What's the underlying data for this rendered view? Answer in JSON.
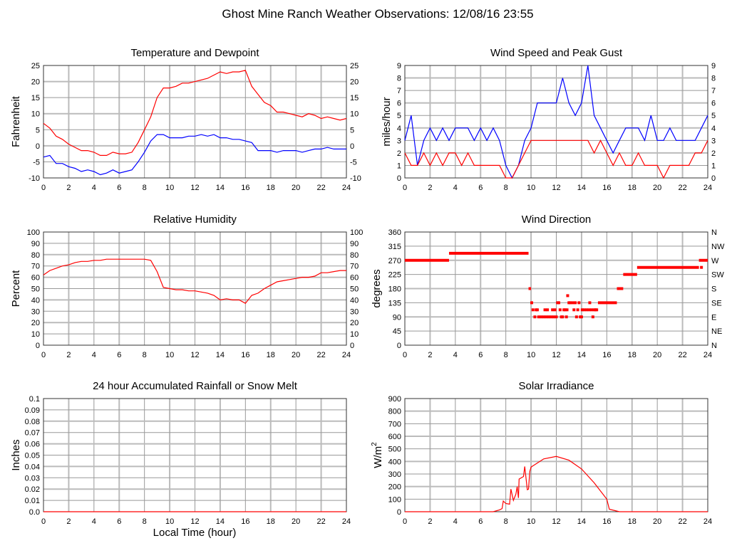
{
  "title": "Ghost Mine Ranch Weather Observations: 12/08/16 23:55",
  "x_axis_label": "Local Time (hour)",
  "chart_data": [
    {
      "id": "temp",
      "type": "line",
      "title": "Temperature and Dewpoint",
      "ylabel": "Fahrenheit",
      "xlim": [
        0,
        24
      ],
      "ylim": [
        -10,
        25
      ],
      "xticks": [
        0,
        2,
        4,
        6,
        8,
        10,
        12,
        14,
        16,
        18,
        20,
        22,
        24
      ],
      "yticks": [
        -10,
        -5,
        0,
        5,
        10,
        15,
        20,
        25
      ],
      "right_ticks": [
        "-10",
        "-5",
        "0",
        "5",
        "10",
        "15",
        "20",
        "25"
      ],
      "grid": true,
      "x": [
        0,
        0.5,
        1,
        1.5,
        2,
        2.5,
        3,
        3.5,
        4,
        4.5,
        5,
        5.5,
        6,
        6.5,
        7,
        7.5,
        8,
        8.5,
        9,
        9.5,
        10,
        10.5,
        11,
        11.5,
        12,
        12.5,
        13,
        13.5,
        14,
        14.5,
        15,
        15.5,
        16,
        16.5,
        17,
        17.5,
        18,
        18.5,
        19,
        19.5,
        20,
        20.5,
        21,
        21.5,
        22,
        22.5,
        23,
        23.5,
        24
      ],
      "series": [
        {
          "name": "Temperature",
          "color": "#ff0000",
          "values": [
            7,
            5.5,
            3,
            2,
            0.5,
            -0.5,
            -1.5,
            -1.5,
            -2,
            -3,
            -3,
            -2,
            -2.5,
            -2.5,
            -2,
            1,
            5,
            9,
            15,
            18,
            18,
            18.5,
            19.5,
            19.5,
            20,
            20.5,
            21,
            22,
            23,
            22.5,
            23,
            23,
            23.5,
            18.5,
            16,
            13.5,
            12.5,
            10.5,
            10.5,
            10,
            9.5,
            9,
            10,
            9.5,
            8.5,
            9,
            8.5,
            8,
            8.5
          ]
        },
        {
          "name": "Dewpoint",
          "color": "#0000ff",
          "values": [
            -3.5,
            -3,
            -5.5,
            -5.5,
            -6.5,
            -7,
            -8,
            -7.5,
            -8,
            -9,
            -8.5,
            -7.5,
            -8.5,
            -8,
            -7.5,
            -5,
            -2,
            1.5,
            3.5,
            3.5,
            2.5,
            2.5,
            2.5,
            3,
            3,
            3.5,
            3,
            3.5,
            2.5,
            2.5,
            2,
            2,
            1.5,
            1,
            -1.5,
            -1.5,
            -1.5,
            -2,
            -1.5,
            -1.5,
            -1.5,
            -2,
            -1.5,
            -1,
            -1,
            -0.5,
            -1,
            -1,
            -1
          ]
        }
      ]
    },
    {
      "id": "wind",
      "type": "line",
      "title": "Wind Speed and Peak Gust",
      "ylabel": "miles/hour",
      "xlim": [
        0,
        24
      ],
      "ylim": [
        0,
        9
      ],
      "xticks": [
        0,
        2,
        4,
        6,
        8,
        10,
        12,
        14,
        16,
        18,
        20,
        22,
        24
      ],
      "yticks": [
        0,
        1,
        2,
        3,
        4,
        5,
        6,
        7,
        8,
        9
      ],
      "right_ticks": [
        "0",
        "1",
        "2",
        "3",
        "4",
        "5",
        "6",
        "7",
        "8",
        "9"
      ],
      "grid": true,
      "x": [
        0,
        0.5,
        1,
        1.5,
        2,
        2.5,
        3,
        3.5,
        4,
        4.5,
        5,
        5.5,
        6,
        6.5,
        7,
        7.5,
        8,
        8.5,
        9,
        9.5,
        10,
        10.5,
        11,
        11.5,
        12,
        12.5,
        13,
        13.5,
        14,
        14.5,
        15,
        15.5,
        16,
        16.5,
        17,
        17.5,
        18,
        18.5,
        19,
        19.5,
        20,
        20.5,
        21,
        21.5,
        22,
        22.5,
        23,
        23.5,
        24
      ],
      "series": [
        {
          "name": "Peak Gust",
          "color": "#0000ff",
          "values": [
            3,
            5,
            1,
            3,
            4,
            3,
            4,
            3,
            4,
            4,
            4,
            3,
            4,
            3,
            4,
            3,
            1,
            0,
            1,
            3,
            4,
            6,
            6,
            6,
            6,
            8,
            6,
            5,
            6,
            9,
            5,
            4,
            3,
            2,
            3,
            4,
            4,
            4,
            3,
            5,
            3,
            3,
            4,
            3,
            3,
            3,
            3,
            4,
            5
          ]
        },
        {
          "name": "Wind Speed",
          "color": "#ff0000",
          "values": [
            2,
            1,
            1,
            2,
            1,
            2,
            1,
            2,
            2,
            1,
            2,
            1,
            1,
            1,
            1,
            1,
            0,
            0,
            1,
            2,
            3,
            3,
            3,
            3,
            3,
            3,
            3,
            3,
            3,
            3,
            2,
            3,
            2,
            1,
            2,
            1,
            1,
            2,
            1,
            1,
            1,
            0,
            1,
            1,
            1,
            1,
            2,
            2,
            3
          ]
        }
      ]
    },
    {
      "id": "rh",
      "type": "line",
      "title": "Relative Humidity",
      "ylabel": "Percent",
      "xlim": [
        0,
        24
      ],
      "ylim": [
        0,
        100
      ],
      "xticks": [
        0,
        2,
        4,
        6,
        8,
        10,
        12,
        14,
        16,
        18,
        20,
        22,
        24
      ],
      "yticks": [
        0,
        10,
        20,
        30,
        40,
        50,
        60,
        70,
        80,
        90,
        100
      ],
      "right_ticks": [
        "0",
        "10",
        "20",
        "30",
        "40",
        "50",
        "60",
        "70",
        "80",
        "90",
        "100"
      ],
      "grid": true,
      "x": [
        0,
        0.5,
        1,
        1.5,
        2,
        2.5,
        3,
        3.5,
        4,
        4.5,
        5,
        5.5,
        6,
        6.5,
        7,
        7.5,
        8,
        8.5,
        9,
        9.5,
        10,
        10.5,
        11,
        11.5,
        12,
        12.5,
        13,
        13.5,
        14,
        14.5,
        15,
        15.5,
        16,
        16.5,
        17,
        17.5,
        18,
        18.5,
        19,
        19.5,
        20,
        20.5,
        21,
        21.5,
        22,
        22.5,
        23,
        23.5,
        24
      ],
      "series": [
        {
          "name": "Relative Humidity",
          "color": "#ff0000",
          "values": [
            62,
            66,
            68,
            70,
            71,
            73,
            74,
            74,
            75,
            75,
            76,
            76,
            76,
            76,
            76,
            76,
            76,
            75,
            65,
            51,
            50,
            49,
            49,
            48,
            48,
            47,
            46,
            44,
            40,
            41,
            40,
            40,
            37,
            44,
            46,
            50,
            53,
            56,
            57,
            58,
            59,
            60,
            60,
            61,
            64,
            64,
            65,
            66,
            66
          ]
        }
      ]
    },
    {
      "id": "dir",
      "type": "scatter",
      "title": "Wind Direction",
      "ylabel": "degrees",
      "xlim": [
        0,
        24
      ],
      "ylim": [
        0,
        360
      ],
      "xticks": [
        0,
        2,
        4,
        6,
        8,
        10,
        12,
        14,
        16,
        18,
        20,
        22,
        24
      ],
      "yticks": [
        0,
        45,
        90,
        135,
        180,
        225,
        270,
        315,
        360
      ],
      "right_ticks": [
        "N",
        "NE",
        "E",
        "SE",
        "S",
        "SW",
        "W",
        "NW",
        "N"
      ],
      "grid": true,
      "color": "#ff0000",
      "runs": [
        [
          0,
          3.5,
          270
        ],
        [
          3.5,
          9.8,
          292.5
        ],
        [
          9.8,
          10.0,
          180
        ],
        [
          15.3,
          16.8,
          135
        ],
        [
          16.8,
          17.3,
          180
        ],
        [
          17.3,
          18.4,
          225
        ],
        [
          18.4,
          23.3,
          247.5
        ],
        [
          23.3,
          24,
          270
        ]
      ],
      "points": [
        [
          10.05,
          135
        ],
        [
          10.15,
          112.5
        ],
        [
          10.3,
          90
        ],
        [
          10.4,
          112.5
        ],
        [
          10.5,
          112.5
        ],
        [
          10.6,
          90
        ],
        [
          10.8,
          90
        ],
        [
          11.0,
          90
        ],
        [
          11.1,
          112.5
        ],
        [
          11.2,
          90
        ],
        [
          11.3,
          112.5
        ],
        [
          11.4,
          90
        ],
        [
          11.6,
          90
        ],
        [
          11.7,
          112.5
        ],
        [
          11.8,
          90
        ],
        [
          11.9,
          112.5
        ],
        [
          12.0,
          90
        ],
        [
          12.1,
          135
        ],
        [
          12.2,
          135
        ],
        [
          12.3,
          112.5
        ],
        [
          12.4,
          90
        ],
        [
          12.5,
          90
        ],
        [
          12.6,
          112.5
        ],
        [
          12.7,
          112.5
        ],
        [
          12.8,
          90
        ],
        [
          12.85,
          112.5
        ],
        [
          12.9,
          157.5
        ],
        [
          13.0,
          135
        ],
        [
          13.1,
          135
        ],
        [
          13.3,
          135
        ],
        [
          13.4,
          112.5
        ],
        [
          13.5,
          135
        ],
        [
          13.6,
          90
        ],
        [
          13.7,
          112.5
        ],
        [
          13.8,
          135
        ],
        [
          13.9,
          90
        ],
        [
          14.0,
          90
        ],
        [
          14.05,
          112.5
        ],
        [
          14.2,
          112.5
        ],
        [
          14.4,
          112.5
        ],
        [
          14.6,
          112.5
        ],
        [
          14.65,
          135
        ],
        [
          14.8,
          112.5
        ],
        [
          14.9,
          90
        ],
        [
          15.0,
          112.5
        ],
        [
          15.1,
          112.5
        ],
        [
          15.2,
          112.5
        ],
        [
          23.5,
          247.5
        ]
      ]
    },
    {
      "id": "rain",
      "type": "line",
      "title": "24 hour Accumulated Rainfall or Snow Melt",
      "ylabel": "Inches",
      "xlim": [
        0,
        24
      ],
      "ylim": [
        0,
        0.1
      ],
      "xticks": [
        0,
        2,
        4,
        6,
        8,
        10,
        12,
        14,
        16,
        18,
        20,
        22,
        24
      ],
      "yticks": [
        0,
        0.01,
        0.02,
        0.03,
        0.04,
        0.05,
        0.06,
        0.07,
        0.08,
        0.09,
        0.1
      ],
      "ytick_labels": [
        "0.0",
        "0.01",
        "0.02",
        "0.03",
        "0.04",
        "0.05",
        "0.06",
        "0.07",
        "0.08",
        "0.09",
        "0.1"
      ],
      "grid": true,
      "x": [
        0,
        24
      ],
      "series": [
        {
          "name": "Rainfall",
          "color": "#ff0000",
          "values": [
            0,
            0
          ]
        }
      ]
    },
    {
      "id": "solar",
      "type": "line",
      "title": "Solar Irradiance",
      "ylabel": "W/m",
      "ylabel_sup": "2",
      "xlim": [
        0,
        24
      ],
      "ylim": [
        0,
        900
      ],
      "xticks": [
        0,
        2,
        4,
        6,
        8,
        10,
        12,
        14,
        16,
        18,
        20,
        22,
        24
      ],
      "yticks": [
        0,
        100,
        200,
        300,
        400,
        500,
        600,
        700,
        800,
        900
      ],
      "grid": true,
      "x": [
        0,
        7,
        7.5,
        7.7,
        7.8,
        8,
        8.3,
        8.4,
        8.6,
        8.8,
        8.9,
        9,
        9.05,
        9.4,
        9.5,
        9.7,
        9.8,
        9.9,
        10,
        11,
        12,
        13,
        14,
        15,
        16,
        16.2,
        17,
        24
      ],
      "series": [
        {
          "name": "Solar Irradiance",
          "color": "#ff0000",
          "values": [
            0,
            0,
            15,
            25,
            85,
            65,
            60,
            180,
            90,
            140,
            200,
            110,
            260,
            280,
            360,
            175,
            180,
            320,
            355,
            420,
            440,
            410,
            340,
            230,
            100,
            20,
            0,
            0
          ]
        }
      ]
    }
  ]
}
